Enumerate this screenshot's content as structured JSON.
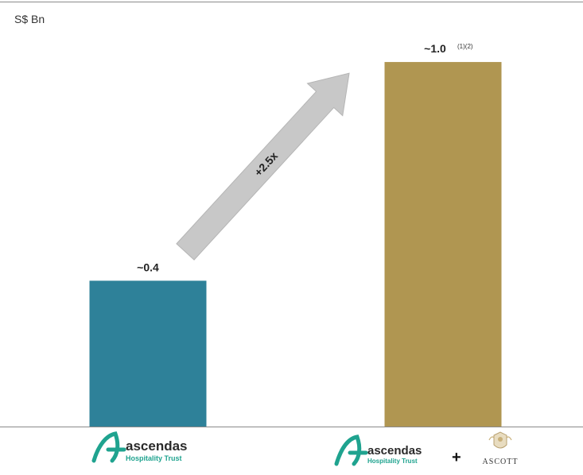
{
  "unit_label": "S$ Bn",
  "chart_data": {
    "type": "bar",
    "title": "",
    "xlabel": "",
    "ylabel": "S$ Bn",
    "ylim": [
      0,
      1.12
    ],
    "categories": [
      "ascendas Hospitality Trust",
      "ascendas Hospitality Trust + ASCOTT"
    ],
    "values": [
      0.4,
      1.0
    ],
    "data_labels": [
      "~0.4",
      "~1.0"
    ],
    "footnote_markers": [
      "",
      "(1)(2)"
    ],
    "bar_colors": [
      "#2e8199",
      "#b09651"
    ],
    "annotation": "+2.5x",
    "arrow_color": "#c8c8c8",
    "gridlines": false,
    "legend": "none"
  },
  "logos": {
    "left": {
      "word": "ascendas",
      "sub": "Hospitality Trust"
    },
    "right": {
      "word": "ascendas",
      "sub": "Hospitality Trust",
      "plus": "+",
      "partner": "ASCOTT"
    },
    "brand_color": "#1fa38f"
  }
}
